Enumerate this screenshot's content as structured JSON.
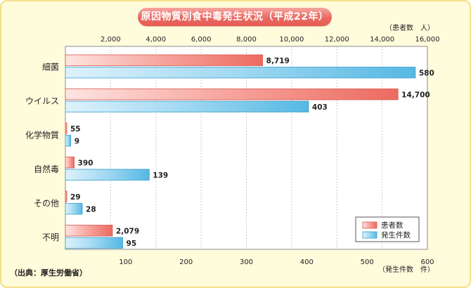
{
  "chart_data": {
    "type": "bar",
    "orientation": "horizontal",
    "title": "原因物質別食中毒発生状況（平成22年）",
    "categories": [
      "細菌",
      "ウイルス",
      "化学物質",
      "自然毒",
      "その他",
      "不明"
    ],
    "series": [
      {
        "name": "患者数",
        "axis": "top",
        "color": "#ee7268",
        "values": [
          8719,
          14700,
          55,
          390,
          29,
          2079
        ],
        "labels": [
          "8,719",
          "14,700",
          "55",
          "390",
          "29",
          "2,079"
        ]
      },
      {
        "name": "発生件数",
        "axis": "bottom",
        "color": "#5fbde5",
        "values": [
          580,
          403,
          9,
          139,
          28,
          95
        ],
        "labels": [
          "580",
          "403",
          "9",
          "139",
          "28",
          "95"
        ]
      }
    ],
    "top_axis": {
      "unit_label": "（患者数　人）",
      "range": [
        0,
        16000
      ],
      "ticks": [
        2000,
        4000,
        6000,
        8000,
        10000,
        12000,
        14000,
        16000
      ],
      "tick_labels": [
        "2,000",
        "4,000",
        "6,000",
        "8,000",
        "10,000",
        "12,000",
        "14,000",
        "16,000"
      ]
    },
    "bottom_axis": {
      "unit_label": "（発生件数　件）",
      "range": [
        0,
        600
      ],
      "ticks": [
        100,
        200,
        300,
        400,
        500,
        600
      ],
      "tick_labels": [
        "100",
        "200",
        "300",
        "400",
        "500",
        "600"
      ]
    },
    "grid": true,
    "legend": {
      "position": "bottom-right",
      "entries": [
        "患者数",
        "発生件数"
      ]
    }
  },
  "source": "（出典：厚生労働省）",
  "colors": {
    "background": "#fffcdc",
    "border": "#f6e08a",
    "title_bg": "#e86a62"
  }
}
